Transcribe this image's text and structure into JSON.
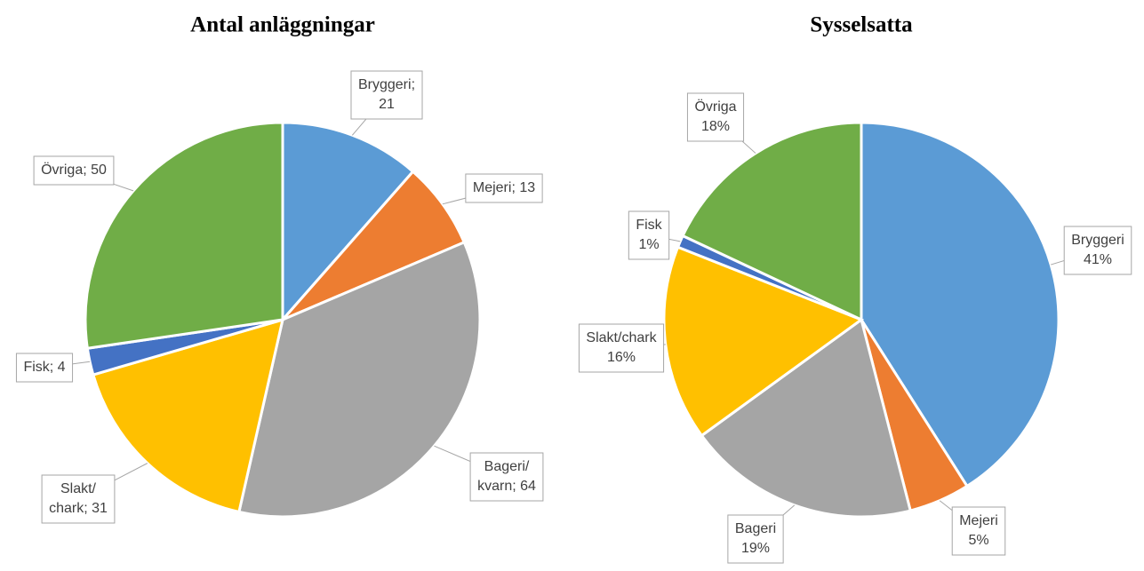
{
  "chart_data": [
    {
      "type": "pie",
      "title": "Antal anläggningar",
      "categories": [
        "Bryggeri",
        "Mejeri",
        "Bageri/kvarn",
        "Slakt/chark",
        "Fisk",
        "Övriga"
      ],
      "values": [
        21,
        13,
        64,
        31,
        4,
        50
      ],
      "value_labels": [
        [
          "Bryggeri;",
          "21"
        ],
        [
          "Mejeri; 13"
        ],
        [
          "Bageri/",
          "kvarn; 64"
        ],
        [
          "Slakt/",
          "chark; 31"
        ],
        [
          "Fisk; 4"
        ],
        [
          "Övriga; 50"
        ]
      ],
      "colors": [
        "#5b9bd5",
        "#ed7d31",
        "#a5a5a5",
        "#ffc000",
        "#4472c4",
        "#70ad47"
      ]
    },
    {
      "type": "pie",
      "title": "Sysselsatta",
      "categories": [
        "Bryggeri",
        "Mejeri",
        "Bageri",
        "Slakt/chark",
        "Fisk",
        "Övriga"
      ],
      "values": [
        41,
        5,
        19,
        16,
        1,
        18
      ],
      "value_labels": [
        "41%",
        "5%",
        "19%",
        "16%",
        "1%",
        "18%"
      ],
      "colors": [
        "#5b9bd5",
        "#ed7d31",
        "#a5a5a5",
        "#ffc000",
        "#4472c4",
        "#70ad47"
      ]
    }
  ]
}
